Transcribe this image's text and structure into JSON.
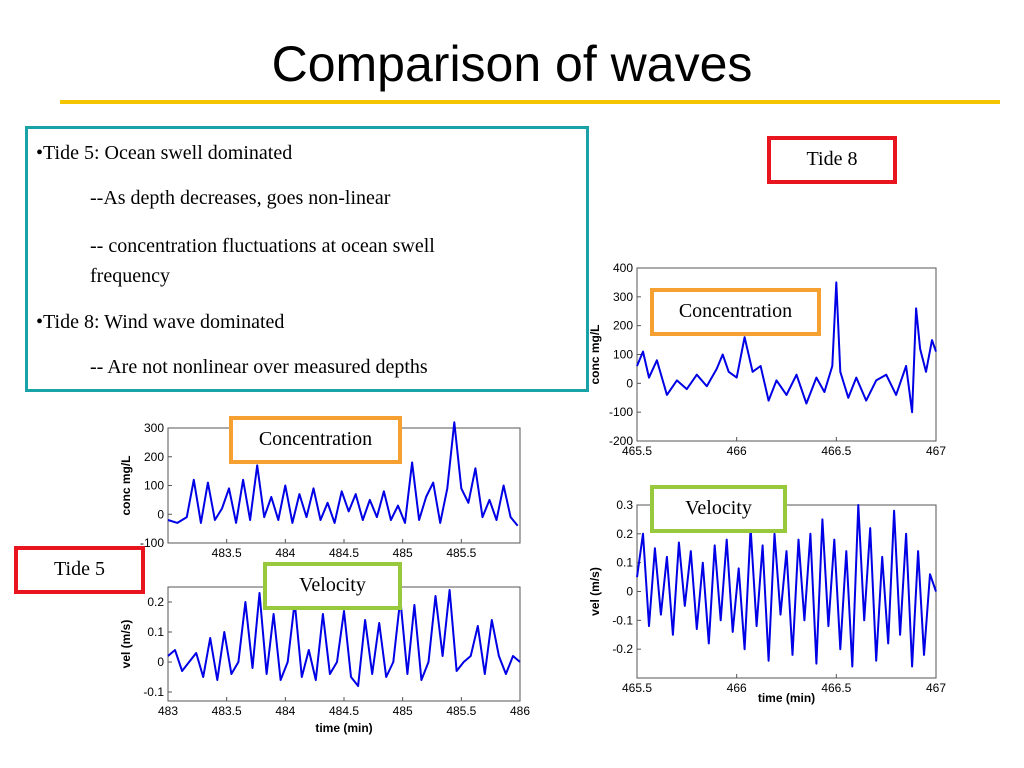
{
  "title": "Comparison of waves",
  "notes": [
    "•Tide 5:  Ocean swell dominated",
    "--As depth decreases, goes non-linear",
    "-- concentration fluctuations at ocean swell",
    "frequency",
    "•Tide 8:  Wind wave dominated",
    "-- Are not nonlinear over measured depths"
  ],
  "labels": {
    "tide8": "Tide 8",
    "tide5": "Tide 5",
    "concentration": "Concentration",
    "velocity": "Velocity"
  },
  "colors": {
    "line": "#0000e6",
    "accent_rule": "#f5c500",
    "tide_box": "#e8141e",
    "conc_box": "#f5a031",
    "vel_box": "#98c93c",
    "note_box": "#1aa3a6"
  },
  "chart_data": [
    {
      "id": "tide8_conc",
      "type": "line",
      "xlabel": "",
      "ylabel": "conc mg/L",
      "xlim": [
        465.5,
        467
      ],
      "ylim": [
        -200,
        400
      ],
      "xticks": [
        "465.5",
        "466",
        "466.5",
        "467"
      ],
      "yticks": [
        "400",
        "300",
        "200",
        "100",
        "0",
        "-100",
        "-200"
      ],
      "series": [
        {
          "x": [
            465.5,
            465.53,
            465.56,
            465.6,
            465.65,
            465.7,
            465.75,
            465.8,
            465.85,
            465.9,
            465.93,
            465.96,
            466.0,
            466.04,
            466.08,
            466.12,
            466.16,
            466.2,
            466.25,
            466.3,
            466.35,
            466.4,
            466.44,
            466.48,
            466.5,
            466.52,
            466.56,
            466.6,
            466.65,
            466.7,
            466.75,
            466.8,
            466.85,
            466.88,
            466.9,
            466.92,
            466.95,
            466.98,
            467.0
          ],
          "y": [
            60,
            110,
            20,
            80,
            -40,
            10,
            -20,
            30,
            -10,
            50,
            100,
            40,
            20,
            160,
            40,
            60,
            -60,
            10,
            -40,
            30,
            -70,
            20,
            -30,
            60,
            350,
            40,
            -50,
            20,
            -60,
            10,
            30,
            -40,
            60,
            -100,
            260,
            120,
            40,
            150,
            110
          ]
        }
      ]
    },
    {
      "id": "tide8_vel",
      "type": "line",
      "xlabel": "time (min)",
      "ylabel": "vel (m/s)",
      "xlim": [
        465.5,
        467
      ],
      "ylim": [
        -0.3,
        0.3
      ],
      "xticks": [
        "465.5",
        "466",
        "466.5",
        "467"
      ],
      "yticks": [
        "0.3",
        "0.2",
        "0.1",
        "0",
        "-0.1",
        "-0.2"
      ],
      "series": [
        {
          "x": [
            465.5,
            465.53,
            465.56,
            465.59,
            465.62,
            465.65,
            465.68,
            465.71,
            465.74,
            465.77,
            465.8,
            465.83,
            465.86,
            465.89,
            465.92,
            465.95,
            465.98,
            466.01,
            466.04,
            466.07,
            466.1,
            466.13,
            466.16,
            466.19,
            466.22,
            466.25,
            466.28,
            466.31,
            466.34,
            466.37,
            466.4,
            466.43,
            466.46,
            466.49,
            466.52,
            466.55,
            466.58,
            466.61,
            466.64,
            466.67,
            466.7,
            466.73,
            466.76,
            466.79,
            466.82,
            466.85,
            466.88,
            466.91,
            466.94,
            466.97,
            467.0
          ],
          "y": [
            0.05,
            0.2,
            -0.12,
            0.15,
            -0.08,
            0.12,
            -0.15,
            0.17,
            -0.05,
            0.14,
            -0.13,
            0.1,
            -0.18,
            0.16,
            -0.1,
            0.18,
            -0.14,
            0.08,
            -0.2,
            0.22,
            -0.12,
            0.16,
            -0.24,
            0.2,
            -0.08,
            0.14,
            -0.22,
            0.18,
            -0.1,
            0.2,
            -0.25,
            0.25,
            -0.12,
            0.18,
            -0.2,
            0.14,
            -0.26,
            0.3,
            -0.1,
            0.22,
            -0.24,
            0.12,
            -0.18,
            0.28,
            -0.15,
            0.2,
            -0.26,
            0.14,
            -0.22,
            0.06,
            0.0
          ]
        }
      ]
    },
    {
      "id": "tide5_conc",
      "type": "line",
      "xlabel": "",
      "ylabel": "conc mg/L",
      "xlim": [
        483,
        486
      ],
      "ylim": [
        -100,
        300
      ],
      "xticks": [
        "483.5",
        "484",
        "484.5",
        "485",
        "485.5"
      ],
      "yticks": [
        "300",
        "200",
        "100",
        "0",
        "-100"
      ],
      "series": [
        {
          "x": [
            483.0,
            483.08,
            483.16,
            483.22,
            483.28,
            483.34,
            483.4,
            483.46,
            483.52,
            483.58,
            483.64,
            483.7,
            483.76,
            483.82,
            483.88,
            483.94,
            484.0,
            484.06,
            484.12,
            484.18,
            484.24,
            484.3,
            484.36,
            484.42,
            484.48,
            484.54,
            484.6,
            484.66,
            484.72,
            484.78,
            484.84,
            484.9,
            484.96,
            485.02,
            485.08,
            485.14,
            485.2,
            485.26,
            485.32,
            485.38,
            485.44,
            485.5,
            485.56,
            485.62,
            485.68,
            485.74,
            485.8,
            485.86,
            485.92,
            485.98
          ],
          "y": [
            -20,
            -30,
            -10,
            120,
            -30,
            110,
            -20,
            20,
            90,
            -30,
            120,
            -20,
            170,
            -10,
            60,
            -20,
            100,
            -30,
            70,
            -10,
            90,
            -20,
            40,
            -30,
            80,
            10,
            70,
            -20,
            50,
            -10,
            80,
            -20,
            30,
            -30,
            180,
            -20,
            60,
            110,
            -30,
            90,
            320,
            90,
            40,
            160,
            -10,
            50,
            -20,
            100,
            -10,
            -40
          ]
        }
      ]
    },
    {
      "id": "tide5_vel",
      "type": "line",
      "xlabel": "time (min)",
      "ylabel": "vel (m/s)",
      "xlim": [
        483,
        486
      ],
      "ylim": [
        -0.13,
        0.25
      ],
      "xticks": [
        "483",
        "483.5",
        "484",
        "484.5",
        "485",
        "485.5",
        "486"
      ],
      "yticks": [
        "0.2",
        "0.1",
        "0",
        "-0.1"
      ],
      "series": [
        {
          "x": [
            483.0,
            483.06,
            483.12,
            483.18,
            483.24,
            483.3,
            483.36,
            483.42,
            483.48,
            483.54,
            483.6,
            483.66,
            483.72,
            483.78,
            483.84,
            483.9,
            483.96,
            484.02,
            484.08,
            484.14,
            484.2,
            484.26,
            484.32,
            484.38,
            484.44,
            484.5,
            484.56,
            484.62,
            484.68,
            484.74,
            484.8,
            484.86,
            484.92,
            484.98,
            485.04,
            485.1,
            485.16,
            485.22,
            485.28,
            485.34,
            485.4,
            485.46,
            485.52,
            485.58,
            485.64,
            485.7,
            485.76,
            485.82,
            485.88,
            485.94,
            486.0
          ],
          "y": [
            0.02,
            0.04,
            -0.03,
            0.0,
            0.03,
            -0.05,
            0.08,
            -0.06,
            0.1,
            -0.04,
            0.0,
            0.2,
            -0.02,
            0.23,
            -0.04,
            0.16,
            -0.06,
            0.0,
            0.2,
            -0.05,
            0.04,
            -0.06,
            0.16,
            -0.04,
            0.0,
            0.17,
            -0.05,
            -0.08,
            0.14,
            -0.04,
            0.13,
            -0.05,
            0.0,
            0.21,
            -0.04,
            0.19,
            -0.06,
            0.0,
            0.22,
            0.02,
            0.24,
            -0.03,
            0.0,
            0.02,
            0.12,
            -0.04,
            0.14,
            0.02,
            -0.04,
            0.02,
            0.0
          ]
        }
      ]
    }
  ]
}
